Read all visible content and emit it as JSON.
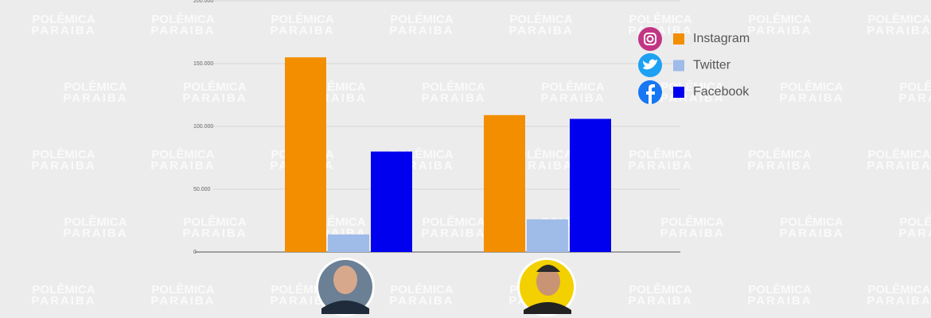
{
  "chart_data": {
    "type": "bar",
    "categories": [
      null,
      null
    ],
    "series": [
      {
        "name": "Instagram",
        "color": "#f28e00",
        "values": [
          155000,
          109000
        ]
      },
      {
        "name": "Twitter",
        "color": "#9fbbe8",
        "values": [
          14000,
          26000
        ]
      },
      {
        "name": "Facebook",
        "color": "#0000ee",
        "values": [
          80000,
          106000
        ]
      }
    ],
    "ylim": [
      0,
      200000
    ],
    "yticks": [
      0,
      {
        "value": 50000,
        "label": "50.000"
      },
      {
        "value": 100000,
        "label": "100.000"
      },
      {
        "value": 150000,
        "label": "150.000"
      },
      {
        "value": 200000,
        "label": "200.000"
      }
    ],
    "grid": true,
    "legend": "top-right",
    "watermark": [
      "POLÊMICA",
      "PARAIBA"
    ]
  }
}
